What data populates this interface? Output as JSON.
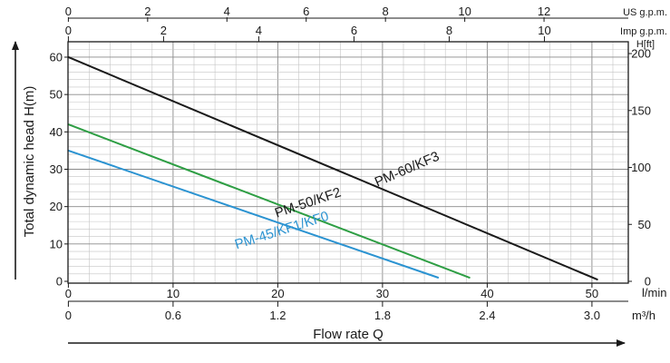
{
  "chart_data": {
    "type": "line",
    "xlabel": "Flow rate Q",
    "ylabel": "Total dynamic head H(m)",
    "x_unit": "l/min",
    "xlim": [
      0,
      53
    ],
    "ylim": [
      0,
      64
    ],
    "x_ticks": [
      "0",
      "10",
      "20",
      "30",
      "40",
      "50"
    ],
    "y_ticks": [
      "0",
      "10",
      "20",
      "30",
      "40",
      "50",
      "60"
    ],
    "secondary_axes": {
      "m3h": {
        "unit": "m³/h",
        "ticks": [
          "0",
          "0.6",
          "1.2",
          "1.8",
          "2.4",
          "3.0"
        ]
      },
      "us_gpm": {
        "unit": "US g.p.m.",
        "ticks": [
          "0",
          "2",
          "4",
          "6",
          "8",
          "10",
          "12"
        ]
      },
      "imp_gpm": {
        "unit": "Imp g.p.m.",
        "ticks": [
          "0",
          "2",
          "4",
          "6",
          "8",
          "10"
        ]
      },
      "head_ft": {
        "unit": "H[ft]",
        "ticks": [
          "0",
          "50",
          "100",
          "150",
          "200"
        ]
      }
    },
    "series": [
      {
        "name": "PM-60/KF3",
        "color": "#1a1a1a",
        "x": [
          0,
          50.5
        ],
        "y": [
          60,
          0.5
        ]
      },
      {
        "name": "PM-50/KF2",
        "color": "#2e9e44",
        "x": [
          0,
          38.3
        ],
        "y": [
          42,
          1
        ]
      },
      {
        "name": "PM-45/KF1/KF0",
        "color": "#2b93d1",
        "x": [
          0,
          35.3
        ],
        "y": [
          35,
          1
        ]
      }
    ],
    "grid": true
  }
}
